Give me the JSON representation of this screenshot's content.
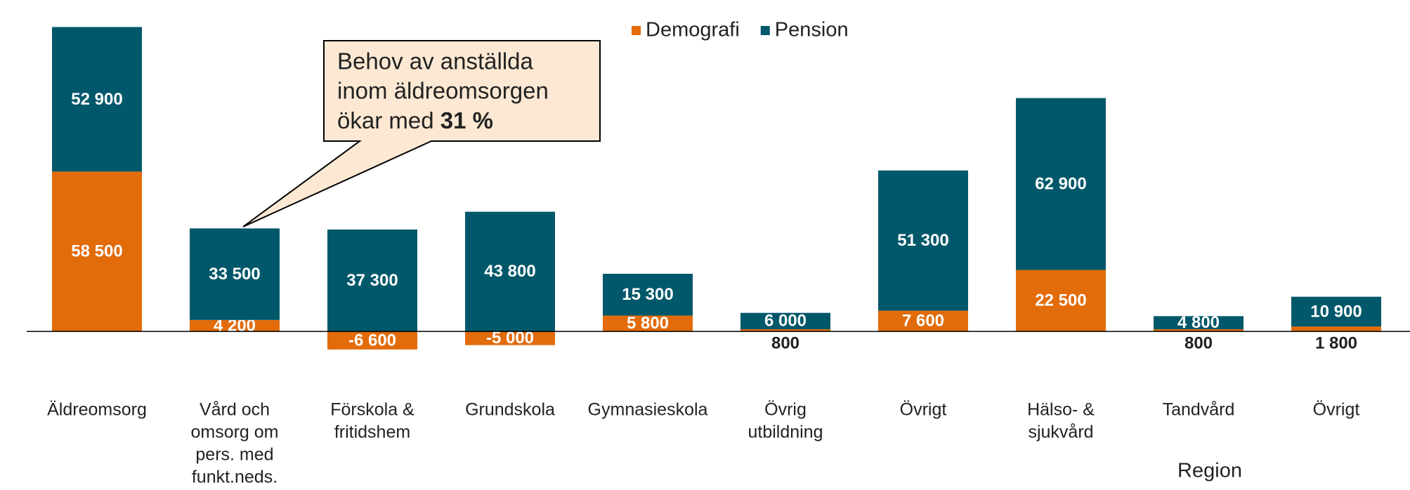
{
  "chart_data": {
    "type": "stacked_bar",
    "categories": [
      [
        "Äldreomsorg"
      ],
      [
        "Vård och",
        "omsorg om",
        "pers. med",
        "funkt.neds."
      ],
      [
        "Förskola &",
        "fritidshem"
      ],
      [
        "Grundskola"
      ],
      [
        "Gymnasieskola"
      ],
      [
        "Övrig",
        "utbildning"
      ],
      [
        "Övrigt"
      ],
      [
        "Hälso- &",
        "sjukvård"
      ],
      [
        "Tandvård"
      ],
      [
        "Övrigt"
      ]
    ],
    "series": [
      {
        "name": "Demografi",
        "color": "#e26b0a",
        "values": [
          58500,
          4200,
          -6600,
          -5000,
          5800,
          800,
          7600,
          22500,
          800,
          1800
        ],
        "value_labels": [
          "58 500",
          "4 200",
          "-6 600",
          "-5 000",
          "5 800",
          "800",
          "7 600",
          "22 500",
          "800",
          "1 800"
        ]
      },
      {
        "name": "Pension",
        "color": "#01586a",
        "values": [
          52900,
          33500,
          37300,
          43800,
          15300,
          6000,
          51300,
          62900,
          4800,
          10900
        ],
        "value_labels": [
          "52 900",
          "33 500",
          "37 300",
          "43 800",
          "15 300",
          "6 000",
          "51 300",
          "62 900",
          "4 800",
          "10 900"
        ]
      }
    ],
    "ylim": [
      -20000,
      120000
    ],
    "legend": "top",
    "annotation": {
      "lines": [
        "Behov av anställda",
        "inom äldreomsorgen",
        "ökar med"
      ],
      "bold": "31 %"
    },
    "group_label": "Region"
  }
}
